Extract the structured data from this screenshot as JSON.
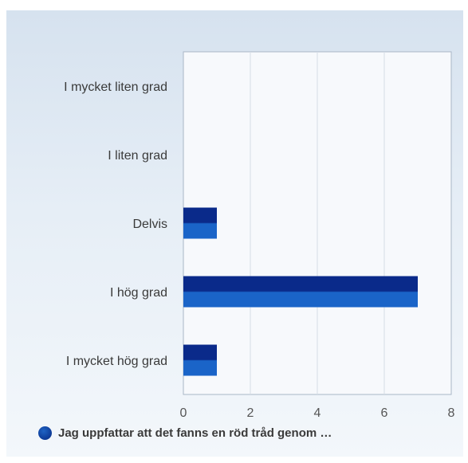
{
  "chart_data": {
    "type": "bar",
    "orientation": "horizontal",
    "categories": [
      "I mycket liten grad",
      "I liten grad",
      "Delvis",
      "I hög grad",
      "I mycket hög grad"
    ],
    "series": [
      {
        "name": "Jag uppfattar att det fanns en röd tråd genom …",
        "values": [
          0,
          0,
          1,
          7,
          1
        ]
      }
    ],
    "xlim": [
      0,
      8
    ],
    "xticks": [
      "0",
      "2",
      "4",
      "6",
      "8"
    ],
    "grid": true,
    "legend_position": "bottom",
    "colors": {
      "bar": "#0a2a8a",
      "bar_highlight": "#1a64c8",
      "grid": "#d6dde6",
      "axis": "#a9b6c6"
    }
  },
  "legend": {
    "label": "Jag uppfattar att det fanns en röd tråd genom …"
  }
}
